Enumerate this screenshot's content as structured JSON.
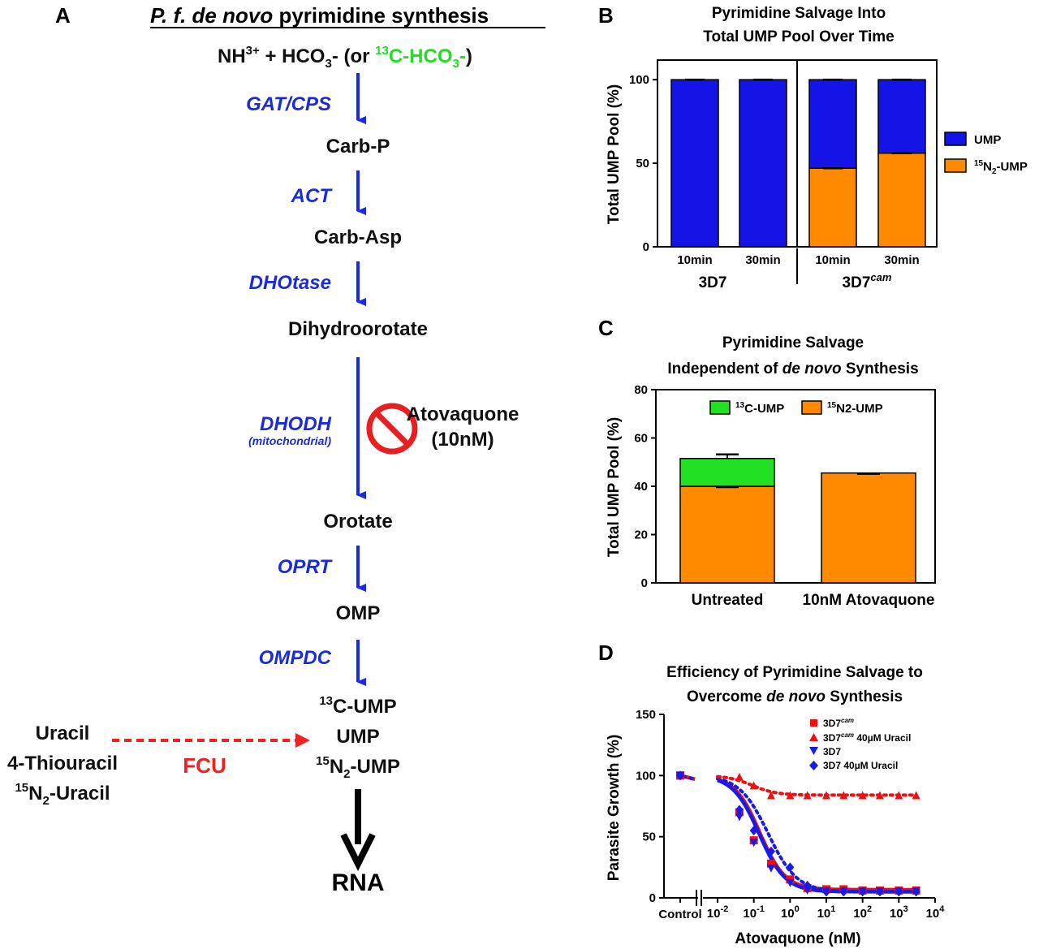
{
  "panel_a": {
    "letter": "A",
    "title_italic": "P. f. de novo",
    "title_rest": " pyrimidine synthesis",
    "inputs_line": {
      "a": "NH",
      "a_sup": "3+",
      "b": " + HCO",
      "b_sub": "3",
      "c": "- (or ",
      "d_sup": "13",
      "d": "C-HCO",
      "d_sub": "3",
      "e": "-",
      "f": ")"
    },
    "steps": [
      {
        "enzyme": "GAT/CPS",
        "product": "Carb-P"
      },
      {
        "enzyme": "ACT",
        "product": "Carb-Asp"
      },
      {
        "enzyme": "DHOtase",
        "product": "Dihydroorotate"
      },
      {
        "enzyme": "DHODH",
        "enzyme_note": "(mitochondrial)",
        "product": "Orotate"
      },
      {
        "enzyme": "OPRT",
        "product": "OMP"
      },
      {
        "enzyme": "OMPDC",
        "product": "UMP"
      }
    ],
    "inhibitor": {
      "name": "Atovaquone",
      "dose": "(10nM)"
    },
    "c13_ump": {
      "sup": "13",
      "text": "C-UMP"
    },
    "n15_ump": {
      "sup": "15",
      "text": "N",
      "sub": "2",
      "rest": "-UMP"
    },
    "salvage": {
      "uracil": "Uracil",
      "thiouracil": "4-Thiouracil",
      "n15_sup": "15",
      "n15_text": "N",
      "n15_sub": "2",
      "n15_rest": "-Uracil",
      "enzyme": "FCU"
    },
    "final": "RNA",
    "colors": {
      "enzyme": "#1a2bdc",
      "green": "#22dd22",
      "orange": "#e07a22",
      "red": "#ee2222"
    }
  },
  "panel_b": {
    "letter": "B",
    "title": [
      "Pyrimidine Salvage Into",
      "Total UMP Pool Over Time"
    ],
    "ylabel": "Total UMP Pool (%)",
    "yticks": [
      "0",
      "50",
      "100"
    ],
    "bars": [
      "10min",
      "30min",
      "10min",
      "30min"
    ],
    "groups": [
      {
        "label": "3D7"
      },
      {
        "label": "3D7",
        "sup": "cam"
      }
    ],
    "legend": [
      {
        "label": "UMP",
        "color": "#1414e6"
      },
      {
        "sup": "15",
        "label": "N",
        "sub": "2",
        "rest": "-UMP",
        "color": "#ff8a00"
      }
    ]
  },
  "panel_c": {
    "letter": "C",
    "title": [
      "Pyrimidine Salvage",
      "Independent of ",
      "de novo",
      " Synthesis"
    ],
    "ylabel": "Total UMP Pool (%)",
    "yticks": [
      "0",
      "20",
      "40",
      "60",
      "80"
    ],
    "legend": [
      {
        "sup": "13",
        "label": "C-UMP",
        "color": "#22e022"
      },
      {
        "sup": "15",
        "label": "N2-UMP",
        "color": "#ff8a00"
      }
    ]
  },
  "panel_d": {
    "letter": "D",
    "title": [
      "Efficiency of Pyrimidine Salvage to",
      "Overcome ",
      "de novo",
      " Synthesis"
    ],
    "ylabel": "Parasite Growth (%)",
    "xlabel": "Atovaquone (nM)",
    "yticks": [
      "0",
      "50",
      "100",
      "150"
    ],
    "control_label": "Control",
    "legend": [
      {
        "label": "3D7",
        "sup": "cam",
        "rest": "",
        "color": "#ee1111",
        "marker": "square"
      },
      {
        "label": "3D7",
        "sup": "cam",
        "rest": " 40µM Uracil",
        "color": "#ee1111",
        "marker": "triangle"
      },
      {
        "label": "3D7",
        "sup": "",
        "rest": "",
        "color": "#1a1ae6",
        "marker": "triangle-down"
      },
      {
        "label": "3D7",
        "sup": "",
        "rest": " 40µM Uracil",
        "color": "#1a1ae6",
        "marker": "diamond"
      }
    ]
  },
  "chart_data": [
    {
      "type": "bar",
      "stacked": true,
      "title": "Pyrimidine Salvage Into Total UMP Pool Over Time",
      "ylabel": "Total UMP Pool (%)",
      "ylim": [
        0,
        100
      ],
      "categories": [
        "3D7 10min",
        "3D7 30min",
        "3D7cam 10min",
        "3D7cam 30min"
      ],
      "series": [
        {
          "name": "15N2-UMP",
          "values": [
            0,
            0,
            47,
            56
          ]
        },
        {
          "name": "UMP",
          "values": [
            100,
            100,
            53,
            44
          ]
        }
      ]
    },
    {
      "type": "bar",
      "stacked": true,
      "title": "Pyrimidine Salvage Independent of de novo Synthesis",
      "ylabel": "Total UMP Pool (%)",
      "ylim": [
        0,
        80
      ],
      "categories": [
        "Untreated",
        "10nM Atovaquone"
      ],
      "series": [
        {
          "name": "15N2-UMP",
          "values": [
            40,
            45.5
          ]
        },
        {
          "name": "13C-UMP",
          "values": [
            11.5,
            0
          ]
        }
      ]
    },
    {
      "type": "scatter",
      "title": "Efficiency of Pyrimidine Salvage to Overcome de novo Synthesis",
      "xlabel": "Atovaquone (nM)",
      "ylabel": "Parasite Growth (%)",
      "xscale": "log",
      "xlim": [
        0.01,
        10000
      ],
      "ylim": [
        0,
        150
      ],
      "xticks": [
        "10^-2",
        "10^-1",
        "10^0",
        "10^1",
        "10^2",
        "10^3",
        "10^4"
      ],
      "series": [
        {
          "name": "3D7cam",
          "control": 100,
          "x": [
            0.04,
            0.1,
            0.3,
            1,
            3,
            10,
            30,
            100,
            300,
            1000,
            3000
          ],
          "y": [
            70,
            47,
            28,
            15,
            8,
            7,
            7,
            6,
            6,
            6,
            6
          ]
        },
        {
          "name": "3D7cam 40µM Uracil",
          "control": 100,
          "x": [
            0.04,
            0.1,
            0.3,
            1,
            3,
            10,
            30,
            100,
            300,
            1000,
            3000
          ],
          "y": [
            99,
            92,
            84,
            84,
            84,
            84,
            84,
            84,
            84,
            84,
            84
          ]
        },
        {
          "name": "3D7",
          "control": 100,
          "x": [
            0.04,
            0.1,
            0.3,
            1,
            3,
            10,
            30,
            100,
            300,
            1000,
            3000
          ],
          "y": [
            66,
            45,
            24,
            12,
            6,
            5,
            5,
            5,
            5,
            5,
            5
          ]
        },
        {
          "name": "3D7 40µM Uracil",
          "control": 100,
          "x": [
            0.04,
            0.1,
            0.3,
            1,
            3,
            10,
            30,
            100,
            300,
            1000,
            3000
          ],
          "y": [
            72,
            55,
            38,
            25,
            10,
            5,
            5,
            5,
            5,
            5,
            5
          ]
        }
      ]
    }
  ]
}
